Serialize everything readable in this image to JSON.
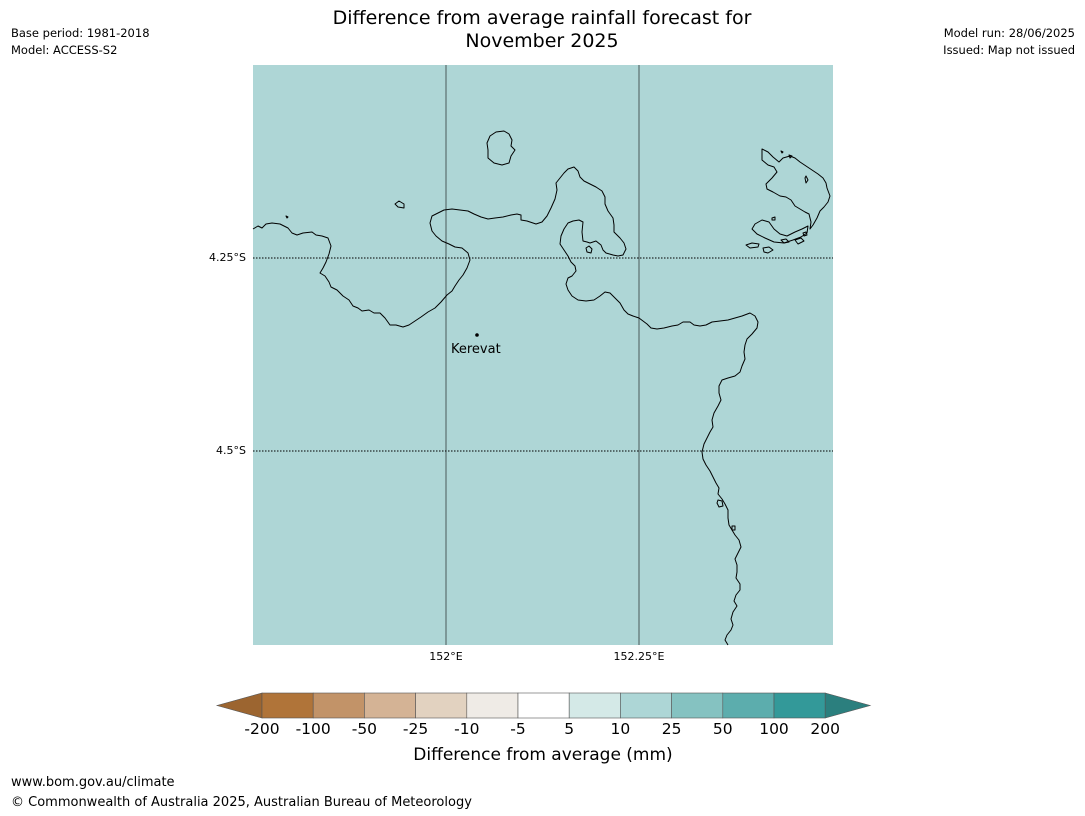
{
  "title": {
    "line1": "Difference from average rainfall forecast for",
    "line2": "November 2025"
  },
  "meta_left": [
    "Base period: 1981-2018",
    "Model: ACCESS-S2"
  ],
  "meta_right": [
    "Model run: 28/06/2025",
    "Issued: Map not issued"
  ],
  "map": {
    "ocean_color": "#aed6d6",
    "coastline_color": "#000000",
    "lat_ticks": [
      "4.25°S",
      "4.5°S"
    ],
    "lon_ticks": [
      "152°E",
      "152.25°E"
    ],
    "place": "Kerevat"
  },
  "colorbar": {
    "title": "Difference from average (mm)",
    "labels": [
      "-200",
      "-100",
      "-50",
      "-25",
      "-10",
      "-5",
      "5",
      "10",
      "25",
      "50",
      "100",
      "200"
    ],
    "colors": [
      "#9c6530",
      "#b07439",
      "#c29368",
      "#d4b395",
      "#e2d2c0",
      "#efebe6",
      "#ffffff",
      "#d4e9e7",
      "#add6d6",
      "#85c2c1",
      "#5cadad",
      "#339999",
      "#2b7f7e"
    ]
  },
  "footer": {
    "url": "www.bom.gov.au/climate",
    "copyright": "© Commonwealth of Australia 2025, Australian Bureau of Meteorology"
  }
}
